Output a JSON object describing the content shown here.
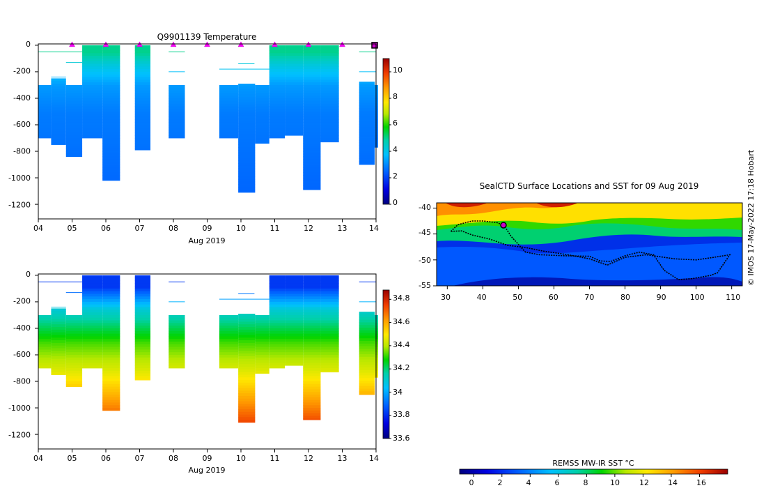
{
  "temperature_panel": {
    "title": "Q9901139  Temperature",
    "xlabel": "Aug 2019",
    "xticks": [
      "04",
      "05",
      "06",
      "07",
      "08",
      "09",
      "10",
      "11",
      "12",
      "13",
      "14"
    ],
    "yticks": [
      "0",
      "-200",
      "-400",
      "-600",
      "-800",
      "-1000",
      "-1200"
    ],
    "colorbar_ticks": [
      "0",
      "2",
      "4",
      "6",
      "8",
      "10"
    ]
  },
  "salinity_panel": {
    "xlabel": "Aug 2019",
    "xticks": [
      "04",
      "05",
      "06",
      "07",
      "08",
      "09",
      "10",
      "11",
      "12",
      "13",
      "14"
    ],
    "yticks": [
      "0",
      "-200",
      "-400",
      "-600",
      "-800",
      "-1000",
      "-1200"
    ],
    "colorbar_ticks": [
      "33.6",
      "33.8",
      "34",
      "34.2",
      "34.4",
      "34.6",
      "34.8"
    ]
  },
  "map_panel": {
    "title": "SealCTD Surface Locations and SST for 09 Aug 2019",
    "xticks": [
      "30",
      "40",
      "50",
      "60",
      "70",
      "80",
      "90",
      "100",
      "110"
    ],
    "yticks": [
      "-40",
      "-45",
      "-50",
      "-55"
    ],
    "colorbar_label": "REMSS MW-IR SST °C",
    "colorbar_ticks": [
      "0",
      "2",
      "4",
      "6",
      "8",
      "10",
      "12",
      "14",
      "16"
    ]
  },
  "credit": "© IMOS 17-May-2022 17:18 Hobart",
  "chart_data": [
    {
      "id": "temperature",
      "type": "heatmap",
      "title": "Q9901139  Temperature",
      "xlabel": "Aug 2019",
      "ylabel": "",
      "xlim": [
        4,
        14
      ],
      "ylim": [
        -1310,
        10
      ],
      "clim": [
        0,
        11
      ],
      "colorbar_ticks": [
        0,
        2,
        4,
        6,
        8,
        10
      ],
      "profiles": [
        {
          "x0": 4.0,
          "x1": 4.38,
          "top": -300,
          "bottom": -700
        },
        {
          "x0": 4.38,
          "x1": 4.82,
          "top": -250,
          "bottom": -750
        },
        {
          "x0": 4.82,
          "x1": 5.3,
          "top": -300,
          "bottom": -840
        },
        {
          "x0": 5.3,
          "x1": 5.9,
          "top": 0,
          "bottom": -700
        },
        {
          "x0": 5.9,
          "x1": 6.42,
          "top": 0,
          "bottom": -1020
        },
        {
          "x0": 6.86,
          "x1": 7.32,
          "top": 0,
          "bottom": -790
        },
        {
          "x0": 7.86,
          "x1": 8.34,
          "top": -300,
          "bottom": -700
        },
        {
          "x0": 9.36,
          "x1": 9.92,
          "top": -300,
          "bottom": -700
        },
        {
          "x0": 9.92,
          "x1": 10.42,
          "top": -290,
          "bottom": -1110
        },
        {
          "x0": 10.42,
          "x1": 10.84,
          "top": -300,
          "bottom": -740
        },
        {
          "x0": 10.84,
          "x1": 11.3,
          "top": 0,
          "bottom": -700
        },
        {
          "x0": 11.3,
          "x1": 11.84,
          "top": 0,
          "bottom": -680
        },
        {
          "x0": 11.84,
          "x1": 12.36,
          "top": 0,
          "bottom": -1090
        },
        {
          "x0": 12.36,
          "x1": 12.9,
          "top": 0,
          "bottom": -730
        },
        {
          "x0": 13.5,
          "x1": 13.96,
          "top": -275,
          "bottom": -900
        },
        {
          "x0": 13.96,
          "x1": 14.06,
          "top": -300,
          "bottom": -770
        }
      ],
      "thin_lines": [
        {
          "x0": 4.0,
          "x1": 5.3,
          "depth": -50
        },
        {
          "x0": 4.38,
          "x1": 4.82,
          "depth": -240
        },
        {
          "x0": 4.82,
          "x1": 5.3,
          "depth": -130
        },
        {
          "x0": 7.86,
          "x1": 8.34,
          "depth": -50
        },
        {
          "x0": 7.86,
          "x1": 8.34,
          "depth": -200
        },
        {
          "x0": 9.36,
          "x1": 10.9,
          "depth": -180
        },
        {
          "x0": 9.92,
          "x1": 10.4,
          "depth": -140
        },
        {
          "x0": 13.5,
          "x1": 14.0,
          "depth": -50
        },
        {
          "x0": 13.5,
          "x1": 14.0,
          "depth": -200
        }
      ],
      "surface_markers_day": [
        5,
        6,
        7,
        8,
        9,
        10,
        11,
        12,
        13
      ],
      "current_marker_day": 14
    },
    {
      "id": "salinity",
      "type": "heatmap",
      "title": "",
      "xlabel": "Aug 2019",
      "ylabel": "",
      "xlim": [
        4,
        14
      ],
      "ylim": [
        -1310,
        10
      ],
      "clim": [
        33.6,
        34.88
      ],
      "colorbar_ticks": [
        33.6,
        33.8,
        34.0,
        34.2,
        34.4,
        34.6,
        34.8
      ],
      "same_profiles_as": "temperature"
    },
    {
      "id": "sst_map",
      "type": "heatmap",
      "title": "SealCTD Surface Locations and SST for 09 Aug 2019",
      "xlabel": "",
      "ylabel": "",
      "xlim": [
        27,
        113
      ],
      "ylim": [
        -55,
        -39
      ],
      "clim": [
        -1,
        18
      ],
      "colorbar_label": "REMSS MW-IR SST °C",
      "colorbar_ticks": [
        0,
        2,
        4,
        6,
        8,
        10,
        12,
        14,
        16
      ],
      "track": [
        [
          31,
          -44.5
        ],
        [
          33,
          -43.2
        ],
        [
          37,
          -42.5
        ],
        [
          40,
          -42.5
        ],
        [
          44,
          -42.8
        ],
        [
          46,
          -43.4
        ],
        [
          48,
          -45.5
        ],
        [
          52,
          -48.5
        ],
        [
          56,
          -49
        ],
        [
          63,
          -49.2
        ],
        [
          70,
          -49.3
        ],
        [
          73,
          -50.2
        ],
        [
          76,
          -50.3
        ],
        [
          80,
          -49.2
        ],
        [
          84,
          -48.5
        ],
        [
          88,
          -49
        ],
        [
          91,
          -52
        ],
        [
          95,
          -53.8
        ],
        [
          99,
          -53.6
        ],
        [
          104,
          -53.0
        ],
        [
          106,
          -52.5
        ],
        [
          109.5,
          -49.0
        ],
        [
          105,
          -49.5
        ],
        [
          100,
          -50.0
        ],
        [
          94,
          -49.8
        ],
        [
          86,
          -49.0
        ],
        [
          80,
          -49.5
        ],
        [
          75,
          -51.0
        ],
        [
          70,
          -49.8
        ],
        [
          64,
          -49.0
        ],
        [
          57,
          -48.3
        ],
        [
          52,
          -47.6
        ],
        [
          47,
          -47.2
        ],
        [
          42,
          -46.0
        ],
        [
          37,
          -45.2
        ],
        [
          34,
          -44.4
        ],
        [
          31,
          -44.5
        ]
      ],
      "current_location": [
        45.8,
        -43.3
      ]
    }
  ]
}
